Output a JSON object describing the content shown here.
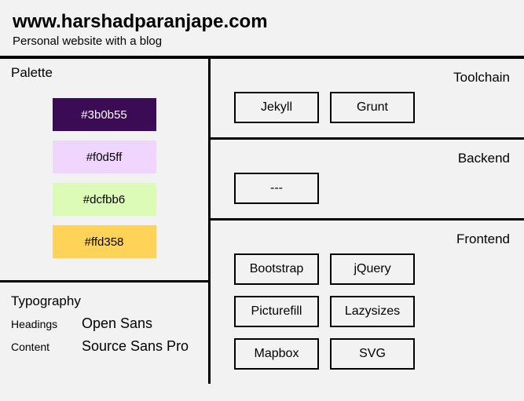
{
  "header": {
    "title": "www.harshadparanjape.com",
    "subtitle": "Personal website with a blog"
  },
  "palette": {
    "label": "Palette",
    "swatches": [
      {
        "hex": "#3b0b55",
        "bg": "#3b0b55",
        "fg": "#ffffff"
      },
      {
        "hex": "#f0d5ff",
        "bg": "#f0d5ff",
        "fg": "#000000"
      },
      {
        "hex": "#dcfbb6",
        "bg": "#dcfbb6",
        "fg": "#000000"
      },
      {
        "hex": "#ffd358",
        "bg": "#ffd358",
        "fg": "#000000"
      }
    ]
  },
  "typography": {
    "label": "Typography",
    "rows": [
      {
        "key": "Headings",
        "value": "Open Sans"
      },
      {
        "key": "Content",
        "value": "Source Sans Pro"
      }
    ]
  },
  "tech": {
    "sections": [
      {
        "label": "Toolchain",
        "items": [
          "Jekyll",
          "Grunt"
        ]
      },
      {
        "label": "Backend",
        "items": [
          "---"
        ]
      },
      {
        "label": "Frontend",
        "items": [
          "Bootstrap",
          "jQuery",
          "Picturefill",
          "Lazysizes",
          "Mapbox",
          "SVG"
        ]
      }
    ]
  }
}
